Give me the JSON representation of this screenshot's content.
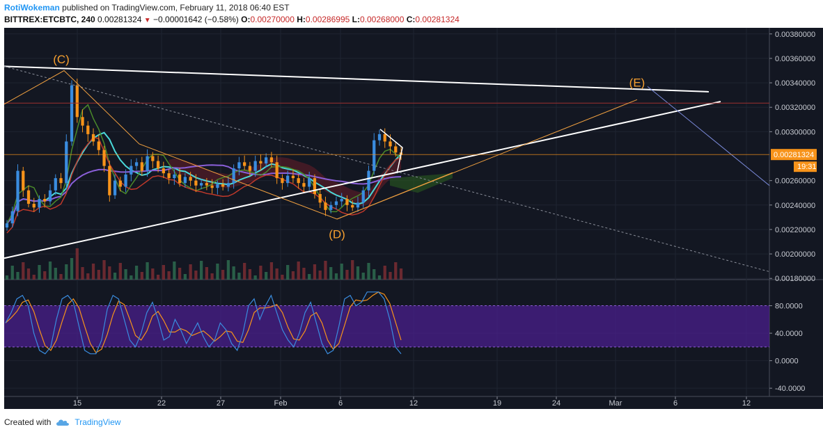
{
  "header": {
    "author": "RotiWokeman",
    "published_text": "published on TradingView.com, February 11, 2018 06:40 EST",
    "symbol": "BITTREX:ETCBTC, 240",
    "last": "0.00281324",
    "change_arrow": "▼",
    "change": "−0.00001642 (−0.58%)",
    "open_label": "O:",
    "open": "0.00270000",
    "high_label": "H:",
    "high": "0.00286995",
    "low_label": "L:",
    "low": "0.00268000",
    "close_label": "C:",
    "close": "0.00281324"
  },
  "footer": {
    "created_with": "Created with",
    "brand": "TradingView"
  },
  "colors": {
    "background": "#131722",
    "axis_bg": "#131722",
    "price_tag": "#f7931a",
    "up_candle": "#3a8cdf",
    "down_candle": "#f7931a",
    "stoch_k": "#3a8cdf",
    "stoch_d": "#f7931a",
    "stoch_band": "#4a1f8c"
  },
  "chart_data": {
    "type": "candlestick",
    "main_pane": {
      "y_ticks": [
        "0.00380000",
        "0.00360000",
        "0.00340000",
        "0.00320000",
        "0.00300000",
        "0.00260000",
        "0.00240000",
        "0.00220000",
        "0.00200000",
        "0.00180000"
      ],
      "ylim": [
        0.00179,
        0.00385
      ],
      "current_price_label": "0.00281324",
      "current_price": 0.00281324,
      "countdown_label": "19:31",
      "wave_labels": [
        {
          "text": "(C)",
          "price": 0.00356
        },
        {
          "text": "(D)",
          "price": 0.00213
        },
        {
          "text": "(E)",
          "price": 0.00337
        }
      ],
      "close_series": [
        0.00225,
        0.00235,
        0.00268,
        0.00252,
        0.00241,
        0.00238,
        0.00245,
        0.00243,
        0.00252,
        0.00262,
        0.00258,
        0.00292,
        0.00338,
        0.00312,
        0.00305,
        0.00298,
        0.00292,
        0.00285,
        0.00272,
        0.00248,
        0.0026,
        0.00255,
        0.00265,
        0.00272,
        0.00275,
        0.00268,
        0.0028,
        0.00276,
        0.0027,
        0.00266,
        0.00262,
        0.00265,
        0.00258,
        0.00263,
        0.0026,
        0.00256,
        0.00258,
        0.00256,
        0.00254,
        0.00257,
        0.00255,
        0.00258,
        0.0027,
        0.00275,
        0.00272,
        0.00268,
        0.00276,
        0.00274,
        0.00279,
        0.00275,
        0.00262,
        0.00258,
        0.00264,
        0.00262,
        0.00258,
        0.00255,
        0.00262,
        0.00249,
        0.00242,
        0.00236,
        0.0024,
        0.00243,
        0.00245,
        0.0024,
        0.00238,
        0.00242,
        0.00252,
        0.00268,
        0.00293,
        0.00298,
        0.00292,
        0.00288,
        0.00283,
        0.00281
      ]
    },
    "stoch_pane": {
      "y_ticks": [
        "80.0000",
        "40.0000",
        "0.0000",
        "-40.0000"
      ],
      "ylim": [
        -52,
        118
      ],
      "band": [
        20,
        80
      ],
      "k_series": [
        55,
        70,
        90,
        95,
        80,
        40,
        15,
        10,
        20,
        60,
        90,
        95,
        85,
        50,
        15,
        10,
        10,
        30,
        75,
        95,
        90,
        60,
        30,
        20,
        40,
        70,
        85,
        60,
        30,
        35,
        60,
        45,
        25,
        40,
        55,
        35,
        20,
        30,
        55,
        45,
        25,
        15,
        40,
        80,
        90,
        60,
        80,
        95,
        70,
        45,
        30,
        20,
        40,
        70,
        85,
        55,
        25,
        10,
        15,
        50,
        90,
        95,
        80,
        85,
        100,
        100,
        100,
        90,
        60,
        20,
        10
      ]
    },
    "x_ticks": [
      "15",
      "22",
      "27",
      "Feb",
      "6",
      "12",
      "19",
      "24",
      "Mar",
      "6",
      "12"
    ]
  }
}
